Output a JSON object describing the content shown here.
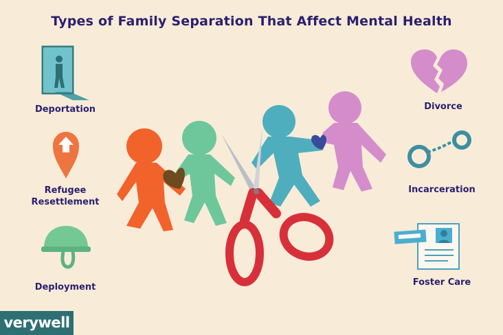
{
  "title": "Types of Family Separation That Affect Mental Health",
  "left_items": [
    {
      "label": "Deportation",
      "icon": "door-silhouette-icon"
    },
    {
      "label": "Refugee Resettlement",
      "icon": "location-pin-arrow-icon"
    },
    {
      "label": "Deployment",
      "icon": "military-helmet-icon"
    }
  ],
  "right_items": [
    {
      "label": "Divorce",
      "icon": "broken-heart-icon"
    },
    {
      "label": "Incarceration",
      "icon": "handcuffs-icon"
    },
    {
      "label": "Foster Care",
      "icon": "id-document-icon"
    }
  ],
  "brand": "verywell",
  "colors": {
    "background": "#f8ecd9",
    "title": "#2b1f6e",
    "orange": "#f2622b",
    "green": "#6dc79a",
    "teal": "#4eaebd",
    "pink": "#d48ccb",
    "scissors": "#d8303a",
    "logo_bg": "#2e6f74"
  }
}
